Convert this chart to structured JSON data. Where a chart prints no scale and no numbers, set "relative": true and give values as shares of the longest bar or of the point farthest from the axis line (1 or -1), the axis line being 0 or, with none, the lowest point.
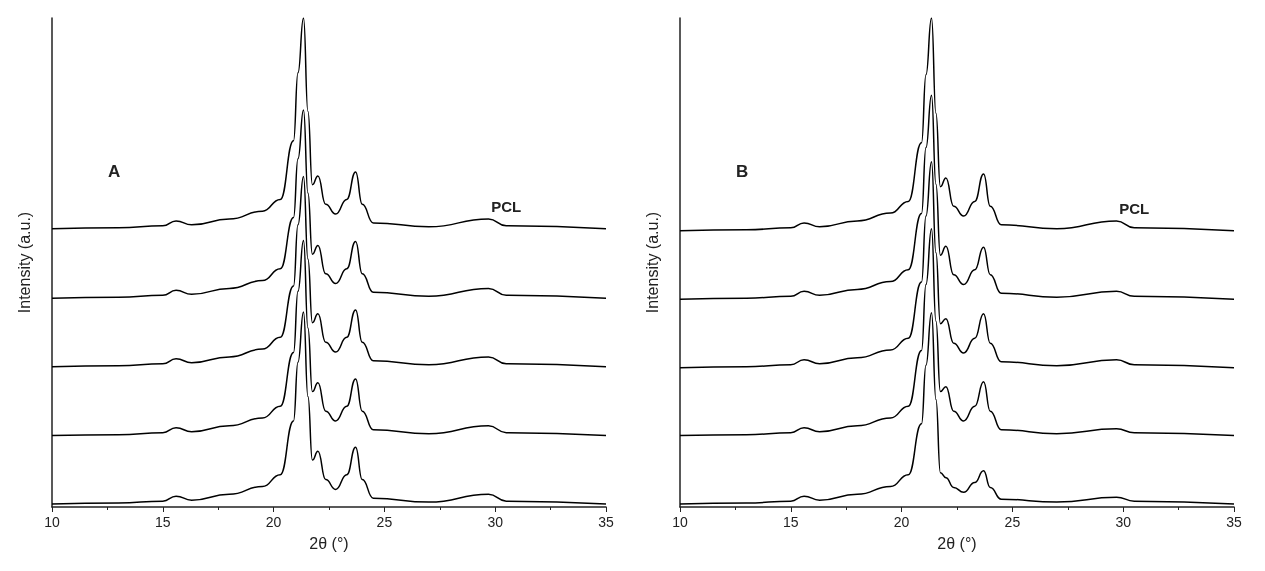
{
  "chart_data": [
    {
      "type": "line",
      "title": "A",
      "xlabel": "2θ (°)",
      "ylabel": "Intensity (a.u.)",
      "relative": true,
      "x": [
        10,
        13,
        15,
        15.6,
        16.3,
        18,
        19.5,
        20.3,
        20.9,
        21.1,
        21.35,
        21.55,
        21.75,
        22.0,
        22.35,
        22.8,
        23.3,
        23.7,
        24.0,
        24.5,
        27,
        29.7,
        30.5,
        35
      ],
      "xlim": [
        10,
        35
      ],
      "xticks": [
        10,
        15,
        20,
        25,
        30,
        35
      ],
      "grid": false,
      "marker": "none",
      "line_style": "solid",
      "series": [
        {
          "name": "PCL",
          "color": "#000000",
          "values": [
            0.569,
            0.571,
            0.575,
            0.585,
            0.577,
            0.589,
            0.605,
            0.629,
            0.749,
            0.888,
            1.0,
            0.809,
            0.659,
            0.677,
            0.619,
            0.599,
            0.629,
            0.685,
            0.619,
            0.581,
            0.573,
            0.589,
            0.575,
            0.569
          ]
        },
        {
          "color": "#000000",
          "values": [
            0.427,
            0.429,
            0.433,
            0.443,
            0.435,
            0.447,
            0.463,
            0.487,
            0.592,
            0.712,
            0.812,
            0.642,
            0.517,
            0.535,
            0.477,
            0.457,
            0.487,
            0.543,
            0.477,
            0.439,
            0.431,
            0.447,
            0.433,
            0.427
          ]
        },
        {
          "color": "#000000",
          "values": [
            0.287,
            0.289,
            0.293,
            0.303,
            0.295,
            0.307,
            0.323,
            0.347,
            0.452,
            0.577,
            0.676,
            0.507,
            0.377,
            0.395,
            0.337,
            0.317,
            0.347,
            0.403,
            0.337,
            0.299,
            0.291,
            0.307,
            0.293,
            0.287
          ]
        },
        {
          "color": "#000000",
          "values": [
            0.146,
            0.148,
            0.152,
            0.162,
            0.154,
            0.166,
            0.182,
            0.206,
            0.316,
            0.441,
            0.545,
            0.366,
            0.236,
            0.254,
            0.196,
            0.176,
            0.206,
            0.262,
            0.196,
            0.158,
            0.15,
            0.166,
            0.152,
            0.146
          ]
        },
        {
          "color": "#000000",
          "values": [
            0.006,
            0.008,
            0.012,
            0.022,
            0.014,
            0.026,
            0.042,
            0.066,
            0.176,
            0.296,
            0.399,
            0.226,
            0.096,
            0.114,
            0.056,
            0.036,
            0.066,
            0.122,
            0.056,
            0.018,
            0.01,
            0.026,
            0.012,
            0.006
          ]
        }
      ]
    },
    {
      "type": "line",
      "title": "B",
      "xlabel": "2θ (°)",
      "ylabel": "Intensity (a.u.)",
      "relative": true,
      "x": [
        10,
        13,
        15,
        15.6,
        16.3,
        18,
        19.5,
        20.3,
        20.9,
        21.1,
        21.35,
        21.55,
        21.75,
        22.0,
        22.35,
        22.8,
        23.3,
        23.7,
        24.0,
        24.5,
        27,
        29.7,
        30.5,
        35
      ],
      "xlim": [
        10,
        35
      ],
      "xticks": [
        10,
        15,
        20,
        25,
        30,
        35
      ],
      "grid": false,
      "marker": "none",
      "line_style": "solid",
      "series": [
        {
          "name": "PCL",
          "color": "#000000",
          "values": [
            0.565,
            0.567,
            0.571,
            0.581,
            0.573,
            0.585,
            0.601,
            0.625,
            0.745,
            0.884,
            1.0,
            0.805,
            0.655,
            0.673,
            0.615,
            0.595,
            0.625,
            0.681,
            0.615,
            0.577,
            0.569,
            0.585,
            0.571,
            0.565
          ]
        },
        {
          "color": "#000000",
          "values": [
            0.425,
            0.427,
            0.431,
            0.441,
            0.433,
            0.445,
            0.461,
            0.485,
            0.6,
            0.735,
            0.842,
            0.66,
            0.515,
            0.533,
            0.475,
            0.455,
            0.485,
            0.531,
            0.475,
            0.437,
            0.429,
            0.441,
            0.431,
            0.425
          ]
        },
        {
          "color": "#000000",
          "values": [
            0.285,
            0.287,
            0.291,
            0.301,
            0.293,
            0.305,
            0.321,
            0.345,
            0.46,
            0.595,
            0.706,
            0.52,
            0.375,
            0.385,
            0.335,
            0.315,
            0.345,
            0.395,
            0.335,
            0.297,
            0.289,
            0.301,
            0.291,
            0.285
          ]
        },
        {
          "color": "#000000",
          "values": [
            0.146,
            0.148,
            0.152,
            0.162,
            0.154,
            0.166,
            0.182,
            0.206,
            0.32,
            0.455,
            0.569,
            0.38,
            0.236,
            0.246,
            0.196,
            0.176,
            0.206,
            0.256,
            0.196,
            0.158,
            0.15,
            0.16,
            0.152,
            0.146
          ]
        },
        {
          "color": "#000000",
          "values": [
            0.006,
            0.008,
            0.012,
            0.022,
            0.014,
            0.026,
            0.042,
            0.066,
            0.17,
            0.29,
            0.397,
            0.22,
            0.07,
            0.06,
            0.04,
            0.03,
            0.05,
            0.074,
            0.04,
            0.016,
            0.01,
            0.02,
            0.012,
            0.006
          ]
        }
      ]
    }
  ]
}
